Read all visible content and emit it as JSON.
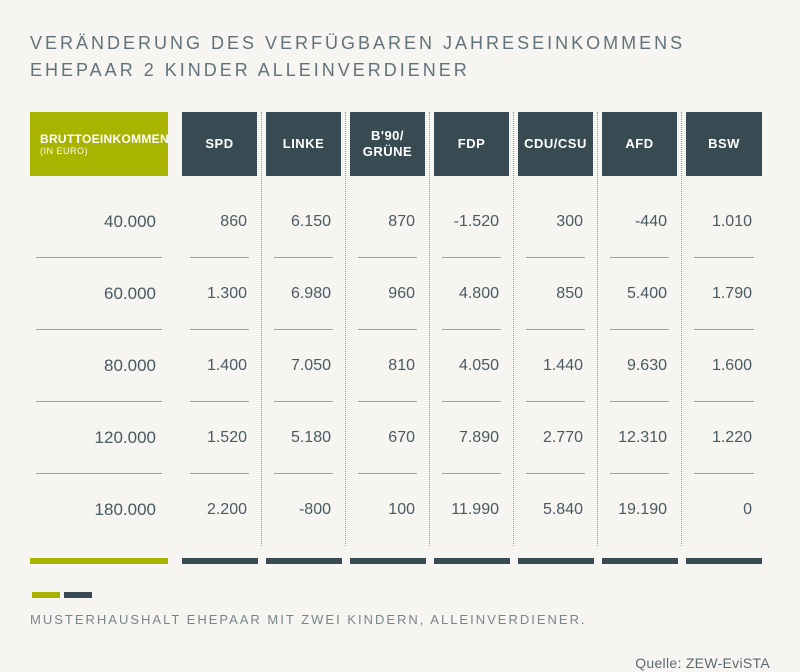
{
  "title_line1": "VERÄNDERUNG DES VERFÜGBAREN JAHRESEINKOMMENS",
  "title_line2": "EHEPAAR 2 KINDER ALLEINVERDIENER",
  "colors": {
    "background": "#f6f5f1",
    "accent_green": "#a8b400",
    "accent_dark": "#384a52",
    "text_title": "#62727a",
    "text_cell": "#4a5a62",
    "rule": "#96a2a8",
    "dotted": "#8a969c"
  },
  "income_header_main": "BRUTTOEINKOMMEN",
  "income_header_sub": "(IN EURO)",
  "income_levels": [
    "40.000",
    "60.000",
    "80.000",
    "120.000",
    "180.000"
  ],
  "parties": [
    {
      "label": "SPD",
      "values": [
        "860",
        "1.300",
        "1.400",
        "1.520",
        "2.200"
      ]
    },
    {
      "label": "LINKE",
      "values": [
        "6.150",
        "6.980",
        "7.050",
        "5.180",
        "-800"
      ]
    },
    {
      "label": "B'90/\nGRÜNE",
      "values": [
        "870",
        "960",
        "810",
        "670",
        "100"
      ]
    },
    {
      "label": "FDP",
      "values": [
        "-1.520",
        "4.800",
        "4.050",
        "7.890",
        "11.990"
      ]
    },
    {
      "label": "CDU/CSU",
      "values": [
        "300",
        "850",
        "1.440",
        "2.770",
        "5.840"
      ]
    },
    {
      "label": "AFD",
      "values": [
        "-440",
        "5.400",
        "9.630",
        "12.310",
        "19.190"
      ]
    },
    {
      "label": "BSW",
      "values": [
        "1.010",
        "1.790",
        "1.600",
        "1.220",
        "0"
      ]
    }
  ],
  "footnote": "MUSTERHAUSHALT EHEPAAR MIT ZWEI KINDERN, ALLEINVERDIENER.",
  "source": "Quelle: ZEW-EviSTA"
}
